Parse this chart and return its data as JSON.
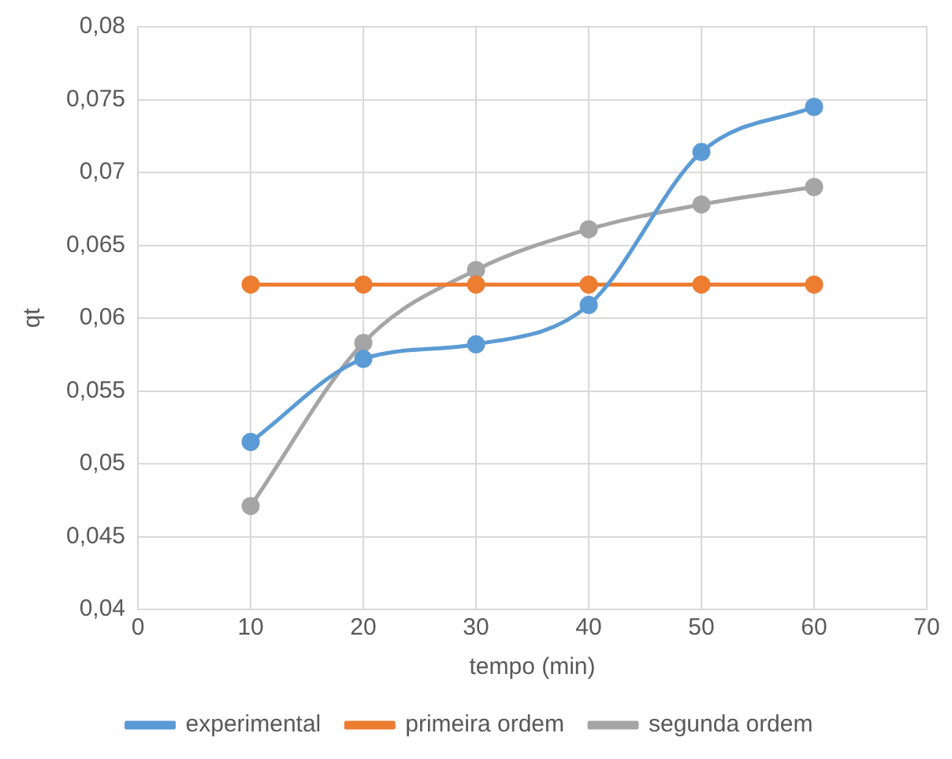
{
  "chart_data": {
    "type": "line",
    "xlabel": "tempo (min)",
    "ylabel": "qt",
    "x": [
      10,
      20,
      30,
      40,
      50,
      60
    ],
    "series": [
      {
        "name": "experimental",
        "color": "#5b9bd5",
        "values": [
          0.0515,
          0.0572,
          0.0582,
          0.0609,
          0.0714,
          0.0745
        ]
      },
      {
        "name": "primeira ordem",
        "color": "#ed7d31",
        "values": [
          0.0623,
          0.0623,
          0.0623,
          0.0623,
          0.0623,
          0.0623
        ]
      },
      {
        "name": "segunda ordem",
        "color": "#a5a5a5",
        "values": [
          0.0471,
          0.0583,
          0.0633,
          0.0661,
          0.0678,
          0.069
        ]
      }
    ],
    "xlim": [
      0,
      70
    ],
    "xticks": [
      0,
      10,
      20,
      30,
      40,
      50,
      60,
      70
    ],
    "ylim": [
      0.04,
      0.08
    ],
    "yticks": [
      {
        "value": 0.04,
        "label": "0,04"
      },
      {
        "value": 0.045,
        "label": "0,045"
      },
      {
        "value": 0.05,
        "label": "0,05"
      },
      {
        "value": 0.055,
        "label": "0,055"
      },
      {
        "value": 0.06,
        "label": "0,06"
      },
      {
        "value": 0.065,
        "label": "0,065"
      },
      {
        "value": 0.07,
        "label": "0,07"
      },
      {
        "value": 0.075,
        "label": "0,075"
      },
      {
        "value": 0.08,
        "label": "0,08"
      }
    ],
    "grid": true,
    "legend": "bottom",
    "marker": "circle",
    "line_style": "solid"
  }
}
